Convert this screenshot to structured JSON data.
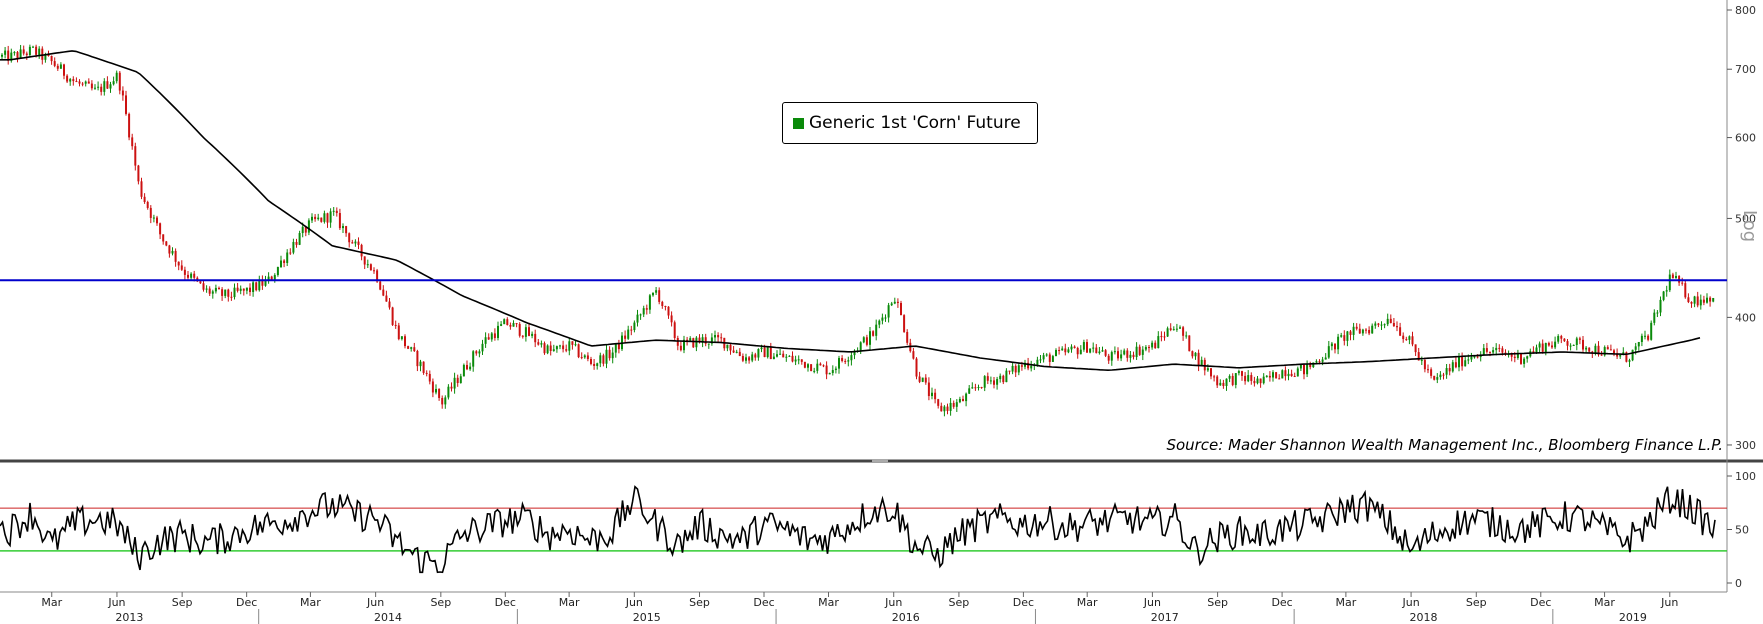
{
  "legend": {
    "label": "Generic 1st 'Corn' Future"
  },
  "source": "Source: Mader Shannon Wealth Management Inc., Bloomberg Finance L.P.",
  "scale_tag": "Log",
  "colors": {
    "up_candle": "#0a8a0a",
    "down_candle": "#cc1111",
    "moving_average": "#000000",
    "resistance_line": "#0000cc",
    "rsi_upper": "#cc2222",
    "rsi_lower": "#33cc33",
    "rsi_line": "#000000"
  },
  "chart_data": [
    {
      "type": "line",
      "panel": "price",
      "scale": "log",
      "y_ticks": [
        "300",
        "400",
        "500",
        "600",
        "700",
        "800"
      ],
      "ylim": [
        290,
        800
      ],
      "x_range": [
        "2013-01",
        "2019-08"
      ],
      "series": [
        {
          "name": "Generic 1st 'Corn' Future",
          "style": "candlestick",
          "x": [
            "2013-01",
            "2013-02",
            "2013-03",
            "2013-04",
            "2013-05",
            "2013-06",
            "2013-07",
            "2013-08",
            "2013-09",
            "2013-10",
            "2013-11",
            "2013-12",
            "2014-01",
            "2014-02",
            "2014-03",
            "2014-04",
            "2014-05",
            "2014-06",
            "2014-07",
            "2014-08",
            "2014-09",
            "2014-10",
            "2014-11",
            "2014-12",
            "2015-01",
            "2015-02",
            "2015-03",
            "2015-04",
            "2015-05",
            "2015-06",
            "2015-07",
            "2015-08",
            "2015-09",
            "2015-10",
            "2015-11",
            "2015-12",
            "2016-01",
            "2016-02",
            "2016-03",
            "2016-04",
            "2016-05",
            "2016-06",
            "2016-07",
            "2016-08",
            "2016-09",
            "2016-10",
            "2016-11",
            "2016-12",
            "2017-01",
            "2017-02",
            "2017-03",
            "2017-04",
            "2017-05",
            "2017-06",
            "2017-07",
            "2017-08",
            "2017-09",
            "2017-10",
            "2017-11",
            "2017-12",
            "2018-01",
            "2018-02",
            "2018-03",
            "2018-04",
            "2018-05",
            "2018-06",
            "2018-07",
            "2018-08",
            "2018-09",
            "2018-10",
            "2018-11",
            "2018-12",
            "2019-01",
            "2019-02",
            "2019-03",
            "2019-04",
            "2019-05",
            "2019-06",
            "2019-07",
            "2019-08"
          ],
          "y": [
            720,
            730,
            710,
            680,
            665,
            690,
            535,
            480,
            445,
            425,
            420,
            425,
            435,
            470,
            495,
            505,
            470,
            440,
            385,
            360,
            330,
            355,
            380,
            395,
            385,
            370,
            375,
            360,
            370,
            395,
            425,
            375,
            380,
            380,
            365,
            370,
            365,
            360,
            355,
            370,
            385,
            420,
            355,
            325,
            330,
            345,
            350,
            360,
            365,
            370,
            375,
            365,
            370,
            375,
            395,
            365,
            345,
            350,
            345,
            355,
            355,
            370,
            385,
            390,
            400,
            375,
            345,
            360,
            370,
            370,
            365,
            375,
            380,
            375,
            370,
            365,
            385,
            440,
            415,
            420
          ]
        },
        {
          "name": "Moving average",
          "x": [
            "2013-01",
            "2013-04",
            "2013-07",
            "2013-10",
            "2014-01",
            "2014-04",
            "2014-07",
            "2014-10",
            "2015-01",
            "2015-04",
            "2015-07",
            "2015-10",
            "2016-01",
            "2016-04",
            "2016-07",
            "2016-10",
            "2017-01",
            "2017-04",
            "2017-07",
            "2017-10",
            "2018-01",
            "2018-04",
            "2018-07",
            "2018-10",
            "2019-01",
            "2019-04",
            "2019-07",
            "2019-08"
          ],
          "y": [
            715,
            730,
            695,
            600,
            520,
            470,
            455,
            420,
            395,
            375,
            380,
            378,
            373,
            370,
            375,
            365,
            358,
            355,
            360,
            357,
            360,
            362,
            365,
            368,
            370,
            368,
            380,
            385
          ]
        }
      ],
      "annotations": [
        {
          "type": "hline",
          "value": 435,
          "label": ""
        }
      ]
    },
    {
      "type": "line",
      "panel": "rsi",
      "y_ticks": [
        "0",
        "50",
        "100"
      ],
      "ylim": [
        0,
        100
      ],
      "thresholds": [
        70,
        30
      ],
      "series": [
        {
          "name": "",
          "x": [
            "2013-01",
            "2013-02",
            "2013-03",
            "2013-04",
            "2013-05",
            "2013-06",
            "2013-07",
            "2013-08",
            "2013-09",
            "2013-10",
            "2013-11",
            "2013-12",
            "2014-01",
            "2014-02",
            "2014-03",
            "2014-04",
            "2014-05",
            "2014-06",
            "2014-07",
            "2014-08",
            "2014-09",
            "2014-10",
            "2014-11",
            "2014-12",
            "2015-01",
            "2015-02",
            "2015-03",
            "2015-04",
            "2015-05",
            "2015-06",
            "2015-07",
            "2015-08",
            "2015-09",
            "2015-10",
            "2015-11",
            "2015-12",
            "2016-01",
            "2016-02",
            "2016-03",
            "2016-04",
            "2016-05",
            "2016-06",
            "2016-07",
            "2016-08",
            "2016-09",
            "2016-10",
            "2016-11",
            "2016-12",
            "2017-01",
            "2017-02",
            "2017-03",
            "2017-04",
            "2017-05",
            "2017-06",
            "2017-07",
            "2017-08",
            "2017-09",
            "2017-10",
            "2017-11",
            "2017-12",
            "2018-01",
            "2018-02",
            "2018-03",
            "2018-04",
            "2018-05",
            "2018-06",
            "2018-07",
            "2018-08",
            "2018-09",
            "2018-10",
            "2018-11",
            "2018-12",
            "2019-01",
            "2019-02",
            "2019-03",
            "2019-04",
            "2019-05",
            "2019-06",
            "2019-07",
            "2019-08"
          ],
          "y": [
            50,
            65,
            35,
            55,
            60,
            55,
            25,
            40,
            45,
            38,
            42,
            50,
            55,
            60,
            68,
            72,
            65,
            60,
            38,
            22,
            18,
            45,
            52,
            58,
            60,
            45,
            50,
            40,
            48,
            80,
            55,
            35,
            55,
            45,
            40,
            55,
            50,
            40,
            42,
            55,
            68,
            70,
            35,
            25,
            45,
            55,
            60,
            55,
            58,
            52,
            55,
            58,
            60,
            55,
            62,
            30,
            42,
            48,
            45,
            50,
            55,
            60,
            70,
            72,
            55,
            30,
            45,
            55,
            60,
            55,
            50,
            55,
            62,
            60,
            50,
            40,
            55,
            80,
            70,
            50
          ]
        }
      ]
    }
  ],
  "x_axis": {
    "months": [
      "Mar",
      "Jun",
      "Sep",
      "Dec",
      "Mar",
      "Jun",
      "Sep",
      "Dec",
      "Mar",
      "Jun",
      "Sep",
      "Dec",
      "Mar",
      "Jun",
      "Sep",
      "Dec",
      "Mar",
      "Jun",
      "Sep",
      "Dec",
      "Mar",
      "Jun",
      "Sep",
      "Dec",
      "Mar",
      "Jun"
    ],
    "years": [
      "2013",
      "2014",
      "2015",
      "2016",
      "2017",
      "2018",
      "2019"
    ]
  }
}
